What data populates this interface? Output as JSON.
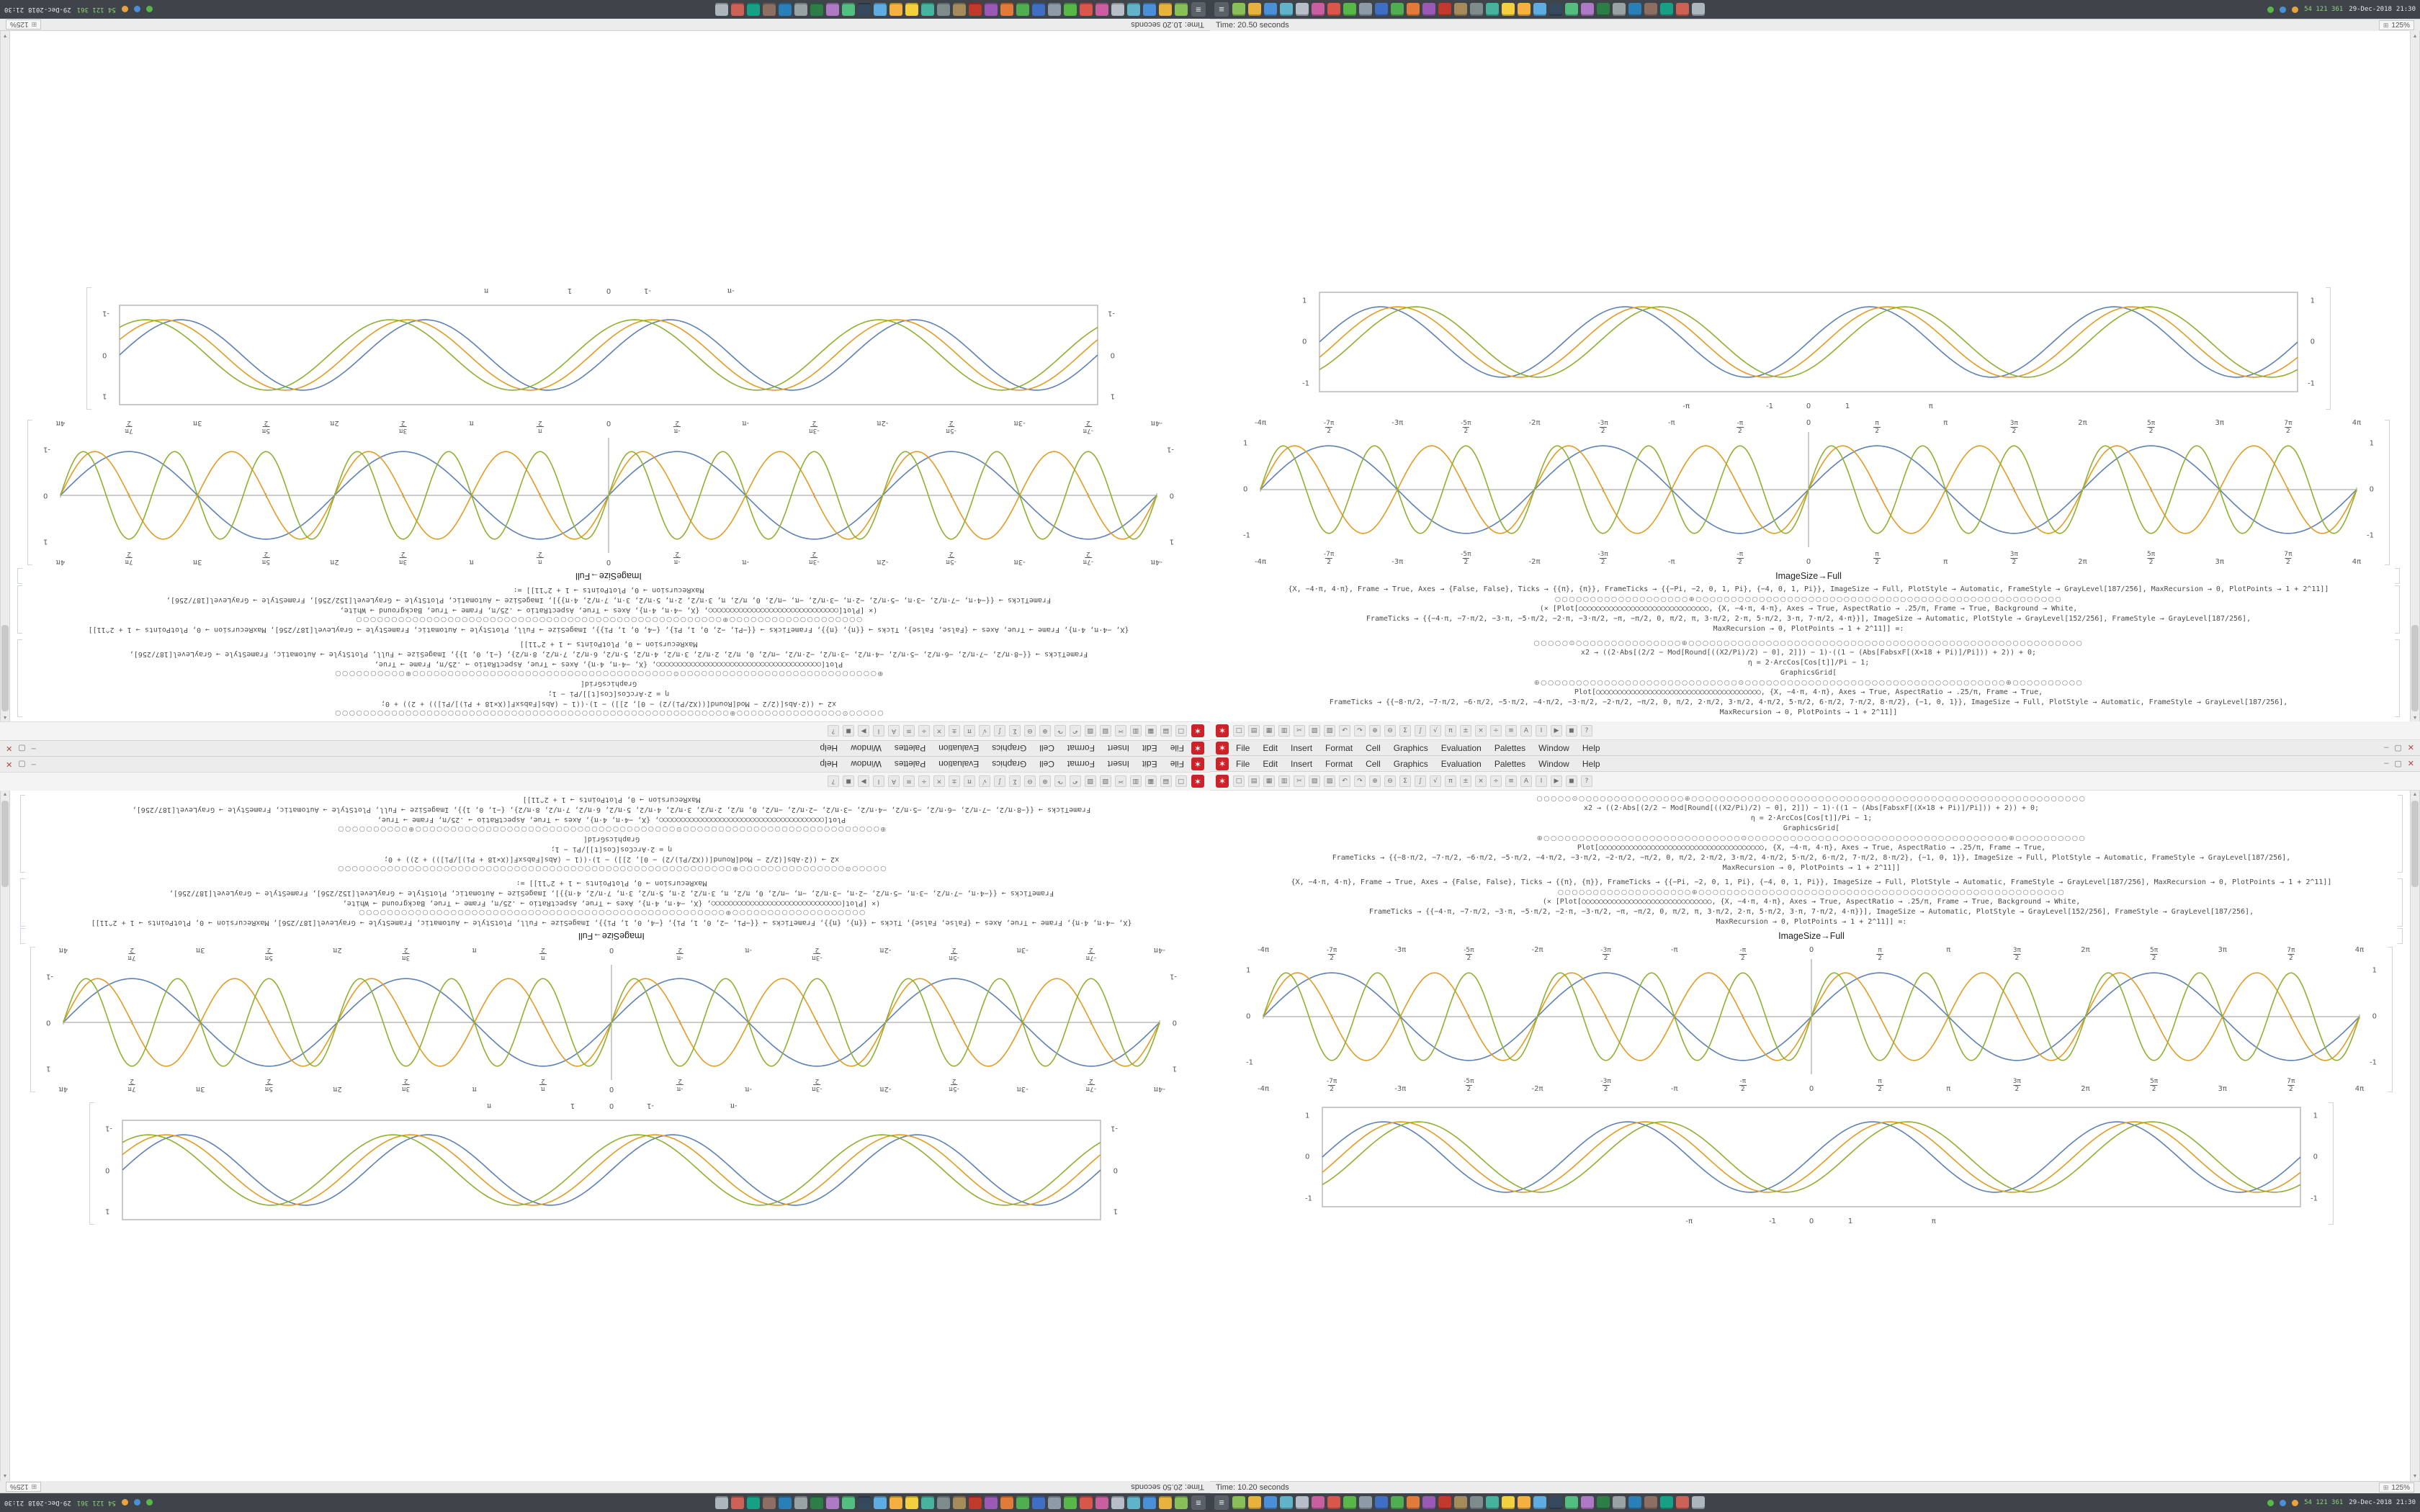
{
  "app": {
    "name": "Wolfram Mathematica",
    "accent_color": "#cc2229"
  },
  "menu": {
    "items": [
      "File",
      "Edit",
      "Insert",
      "Format",
      "Cell",
      "Graphics",
      "Evaluation",
      "Palettes",
      "Window",
      "Help"
    ]
  },
  "window_controls": {
    "minimize": "–",
    "maximize": "▢",
    "close": "✕"
  },
  "toolbar": {
    "icons": [
      {
        "name": "new-notebook",
        "glyph": "□"
      },
      {
        "name": "open",
        "glyph": "▤"
      },
      {
        "name": "save",
        "glyph": "▦"
      },
      {
        "name": "print",
        "glyph": "▥"
      },
      {
        "name": "cut",
        "glyph": "✂"
      },
      {
        "name": "copy",
        "glyph": "▧"
      },
      {
        "name": "paste",
        "glyph": "▨"
      },
      {
        "name": "undo",
        "glyph": "↶"
      },
      {
        "name": "redo",
        "glyph": "↷"
      },
      {
        "name": "insert-cell",
        "glyph": "⊕"
      },
      {
        "name": "delete-cell",
        "glyph": "⊖"
      },
      {
        "name": "sum",
        "glyph": "Σ"
      },
      {
        "name": "integral",
        "glyph": "∫"
      },
      {
        "name": "sqrt",
        "glyph": "√"
      },
      {
        "name": "pi",
        "glyph": "π"
      },
      {
        "name": "plus-minus",
        "glyph": "±"
      },
      {
        "name": "times",
        "glyph": "×"
      },
      {
        "name": "divide",
        "glyph": "÷"
      },
      {
        "name": "align",
        "glyph": "≡"
      },
      {
        "name": "bold",
        "glyph": "A"
      },
      {
        "name": "italic",
        "glyph": "I"
      },
      {
        "name": "evaluate",
        "glyph": "▶"
      },
      {
        "name": "abort",
        "glyph": "◼"
      },
      {
        "name": "help",
        "glyph": "?"
      }
    ]
  },
  "notebook": {
    "code1": {
      "lines": [
        "○○○○○⊙○○○○○○○○○○○○○○○⊕○○○○○○○○○○○○○○○○○○○○○○○○○○○○○○○○○○○○○○○○○○○○○○○○○○○○○○○○",
        "x2 → ((2·Abs[(2/2 − Mod[Round[((X2/Pi)/2) − 0], 2]]) − 1)·((1 − (Abs[FabsxF[(X×18 + Pi)]/Pi])) + 2)) + 0;",
        "η = 2·ArcCos[Cos[t]]/Pi − 1;",
        "GraphicsGrid[",
        "⊕○○○○○○○○○○○○○○○○○○○○○○○○○○○○⊙○○○○○○○○○○○○○○○○○○○○○○○○○○○○○○○○○○○○○⊕○○○○○○○○○○",
        "Plot[○○○○○○○○○○○○○○○○○○○○○○○○○○○○○○○○○○○○○○,  {X, −4·π, 4·π}, Axes → True, AspectRatio → .25/π, Frame → True,",
        "FrameTicks → {{−8·π/2, −7·π/2, −6·π/2, −5·π/2, −4·π/2, −3·π/2, −2·π/2, −π/2, 0, π/2, 2·π/2, 3·π/2, 4·π/2, 5·π/2, 6·π/2, 7·π/2, 8·π/2}, {−1, 0, 1}}, ImageSize → Full, PlotStyle → Automatic, FrameStyle → GrayLevel[187/256],",
        "MaxRecursion → 0, PlotPoints → 1 + 2^11]]"
      ]
    },
    "code2": {
      "lines": [
        "{X, −4·π, 4·π}, Frame → True, Axes → {False, False}, Ticks → {{π}, {π}}, FrameTicks → {{−Pi, −2, 0, 1, Pi}, {−4, 0, 1, Pi}}, ImageSize → Full, PlotStyle → Automatic, FrameStyle → GrayLevel[187/256], MaxRecursion → 0, PlotPoints → 1 + 2^11]]",
        "○○○○○○○○○○○○○○○○○○○⊕○○○○○○○○○○○○○○○○○○○○○○○○○○○○○○○○○○○○○○○○○○○○○○○○○○○○",
        "(× [Plot[○○○○○○○○○○○○○○○○○○○○○○○○○○○○○○, {X, −4·π, 4·π}, Axes → True, AspectRatio → .25/π, Frame → True, Background → White,",
        "FrameTicks → {{−4·π, −7·π/2, −3·π, −5·π/2, −2·π, −3·π/2, −π, −π/2, 0, π/2, π, 3·π/2, 2·π, 5·π/2, 3·π, 7·π/2, 4·π}}], ImageSize → Automatic, PlotStyle → GrayLevel[152/256], FrameStyle → GrayLevel[187/256],",
        "MaxRecursion → 0, PlotPoints → 1 + 2^11]] =:"
      ]
    },
    "caption": "ImageSize→Full"
  },
  "chart_data": [
    {
      "id": "harmonics-plot",
      "type": "line",
      "xlim": [
        -12.566,
        12.566
      ],
      "ylim": [
        -1.25,
        1.25
      ],
      "axes": true,
      "frame": false,
      "ticks_top": true,
      "ticks_bottom": true,
      "xtick_labels": [
        "-4π",
        "-7π/2",
        "-3π",
        "-5π/2",
        "-2π",
        "-3π/2",
        "-π",
        "-π/2",
        "0",
        "π/2",
        "π",
        "3π/2",
        "2π",
        "5π/2",
        "3π",
        "7π/2",
        "4π"
      ],
      "ytick_labels": [
        {
          "v": 1,
          "l": "1"
        },
        {
          "v": 0,
          "l": "0"
        },
        {
          "v": -1,
          "l": "-1"
        }
      ],
      "series": [
        {
          "name": "sin(x)",
          "freq": 1,
          "phase": 0,
          "amp": 0.95,
          "color": "#5e81b5"
        },
        {
          "name": "sin(2x)",
          "freq": 2,
          "phase": 0,
          "amp": 0.95,
          "color": "#e19c24"
        },
        {
          "name": "sin(3x)",
          "freq": 3,
          "phase": 0,
          "amp": 0.95,
          "color": "#8fb032"
        }
      ]
    },
    {
      "id": "framed-plot",
      "type": "line",
      "xlim": [
        -12.566,
        12.566
      ],
      "ylim": [
        -1.2,
        1.2
      ],
      "axes": false,
      "frame": true,
      "ticks_top": false,
      "ticks_bottom": true,
      "xticks": [
        {
          "v": -3.1416,
          "l": "-π"
        },
        {
          "v": -1,
          "l": "-1"
        },
        {
          "v": 0,
          "l": "0"
        },
        {
          "v": 1,
          "l": "1"
        },
        {
          "v": 3.1416,
          "l": "π"
        }
      ],
      "ytick_labels": [
        {
          "v": 1,
          "l": "1"
        },
        {
          "v": 0,
          "l": "0"
        },
        {
          "v": -1,
          "l": "-1"
        }
      ],
      "series": [
        {
          "name": "sin(x)",
          "freq": 1,
          "phase": 0,
          "amp": 0.85,
          "color": "#5e81b5"
        },
        {
          "name": "sin(x-0.45)",
          "freq": 1,
          "phase": -0.45,
          "amp": 0.85,
          "color": "#e19c24"
        },
        {
          "name": "sin(x-0.9)",
          "freq": 1,
          "phase": -0.9,
          "amp": 0.85,
          "color": "#8fb032"
        }
      ]
    }
  ],
  "screens": {
    "left": {
      "status_time": "Time: 20.50 seconds",
      "zoom": "125%"
    },
    "right": {
      "status_time": "Time: 10.20 seconds",
      "zoom": "125%"
    }
  },
  "taskbar": {
    "apps": [
      {
        "name": "terminal",
        "color": "#88c057"
      },
      {
        "name": "files",
        "color": "#e8b33d"
      },
      {
        "name": "web-browser",
        "color": "#4a90d9"
      },
      {
        "name": "mail",
        "color": "#5fb4c9"
      },
      {
        "name": "text-editor",
        "color": "#b7bec7"
      },
      {
        "name": "music-player",
        "color": "#c95fa0"
      },
      {
        "name": "video-player",
        "color": "#d9574a"
      },
      {
        "name": "chat",
        "color": "#57b847"
      },
      {
        "name": "calculator",
        "color": "#8d9aa8"
      },
      {
        "name": "writer",
        "color": "#3f6fc4"
      },
      {
        "name": "spreadsheet",
        "color": "#4fae4f"
      },
      {
        "name": "presentation",
        "color": "#e07b39"
      },
      {
        "name": "image-viewer",
        "color": "#9b59b6"
      },
      {
        "name": "pdf-reader",
        "color": "#c0392b"
      },
      {
        "name": "archive-manager",
        "color": "#a58b5a"
      },
      {
        "name": "settings",
        "color": "#7f8c8d"
      },
      {
        "name": "system-monitor",
        "color": "#45b39d"
      },
      {
        "name": "paint",
        "color": "#f4d03f"
      },
      {
        "name": "notes",
        "color": "#f5b041"
      },
      {
        "name": "calendar",
        "color": "#5dade2"
      },
      {
        "name": "camera",
        "color": "#34495e"
      },
      {
        "name": "maps",
        "color": "#52be80"
      },
      {
        "name": "software-store",
        "color": "#af7ac5"
      },
      {
        "name": "security",
        "color": "#2d7d46"
      },
      {
        "name": "disk-utility",
        "color": "#99a3a4"
      },
      {
        "name": "network-tools",
        "color": "#2980b9"
      },
      {
        "name": "printer-queue",
        "color": "#8d6e63"
      },
      {
        "name": "backup",
        "color": "#16a085"
      },
      {
        "name": "screenshot",
        "color": "#cd6155"
      },
      {
        "name": "trash",
        "color": "#adb5bd"
      }
    ],
    "tray": {
      "stats": "54  121  361",
      "date": "29-Dec-2018",
      "time": "21:30"
    }
  }
}
